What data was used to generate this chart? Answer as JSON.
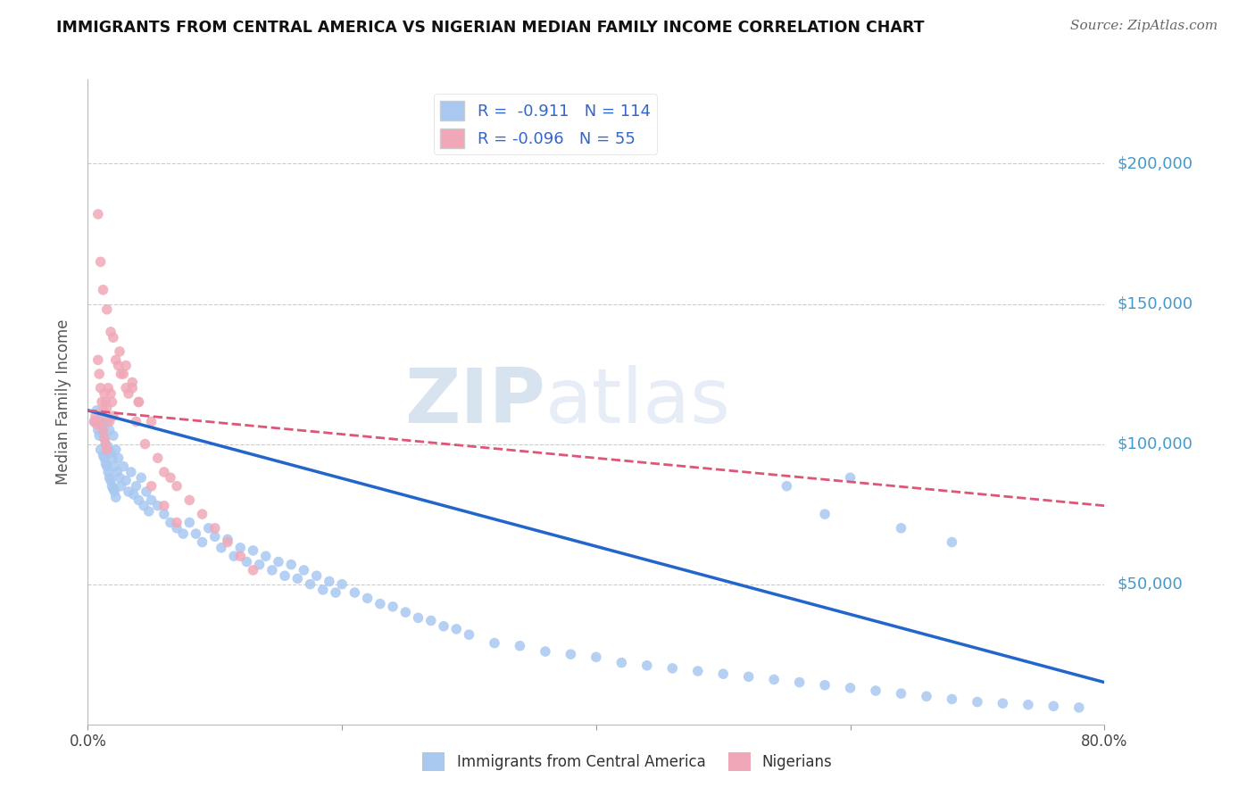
{
  "title": "IMMIGRANTS FROM CENTRAL AMERICA VS NIGERIAN MEDIAN FAMILY INCOME CORRELATION CHART",
  "source": "Source: ZipAtlas.com",
  "ylabel": "Median Family Income",
  "xlim": [
    0.0,
    0.8
  ],
  "ylim": [
    0,
    230000
  ],
  "yticks": [
    0,
    50000,
    100000,
    150000,
    200000
  ],
  "ytick_labels": [
    "",
    "$50,000",
    "$100,000",
    "$150,000",
    "$200,000"
  ],
  "xtick_labels": [
    "0.0%",
    "",
    "",
    "",
    "80.0%"
  ],
  "xticks": [
    0.0,
    0.2,
    0.4,
    0.6,
    0.8
  ],
  "blue_R": "-0.911",
  "blue_N": "114",
  "pink_R": "-0.096",
  "pink_N": "55",
  "blue_color": "#a8c8f0",
  "pink_color": "#f0a8b8",
  "blue_line_color": "#2266cc",
  "pink_line_color": "#dd5577",
  "legend_blue_label": "Immigrants from Central America",
  "legend_pink_label": "Nigerians",
  "watermark_zip": "ZIP",
  "watermark_atlas": "atlas",
  "background_color": "#ffffff",
  "grid_color": "#cccccc",
  "title_color": "#111111",
  "axis_label_color": "#555555",
  "blue_scatter_x": [
    0.005,
    0.007,
    0.008,
    0.009,
    0.01,
    0.01,
    0.011,
    0.012,
    0.012,
    0.013,
    0.013,
    0.014,
    0.014,
    0.015,
    0.015,
    0.016,
    0.016,
    0.017,
    0.017,
    0.018,
    0.018,
    0.019,
    0.019,
    0.02,
    0.02,
    0.021,
    0.021,
    0.022,
    0.022,
    0.023,
    0.024,
    0.025,
    0.026,
    0.028,
    0.03,
    0.032,
    0.034,
    0.036,
    0.038,
    0.04,
    0.042,
    0.044,
    0.046,
    0.048,
    0.05,
    0.055,
    0.06,
    0.065,
    0.07,
    0.075,
    0.08,
    0.085,
    0.09,
    0.095,
    0.1,
    0.105,
    0.11,
    0.115,
    0.12,
    0.125,
    0.13,
    0.135,
    0.14,
    0.145,
    0.15,
    0.155,
    0.16,
    0.165,
    0.17,
    0.175,
    0.18,
    0.185,
    0.19,
    0.195,
    0.2,
    0.21,
    0.22,
    0.23,
    0.24,
    0.25,
    0.26,
    0.27,
    0.28,
    0.29,
    0.3,
    0.32,
    0.34,
    0.36,
    0.38,
    0.4,
    0.42,
    0.44,
    0.46,
    0.48,
    0.5,
    0.52,
    0.54,
    0.56,
    0.58,
    0.6,
    0.62,
    0.64,
    0.66,
    0.68,
    0.7,
    0.72,
    0.74,
    0.76,
    0.78,
    0.55,
    0.58,
    0.6,
    0.64,
    0.68
  ],
  "blue_scatter_y": [
    108000,
    112000,
    105000,
    103000,
    110000,
    98000,
    107000,
    104000,
    96000,
    102000,
    95000,
    100000,
    93000,
    108000,
    92000,
    99000,
    90000,
    105000,
    88000,
    97000,
    87000,
    95000,
    85000,
    103000,
    84000,
    92000,
    83000,
    98000,
    81000,
    90000,
    95000,
    88000,
    85000,
    92000,
    87000,
    83000,
    90000,
    82000,
    85000,
    80000,
    88000,
    78000,
    83000,
    76000,
    80000,
    78000,
    75000,
    72000,
    70000,
    68000,
    72000,
    68000,
    65000,
    70000,
    67000,
    63000,
    66000,
    60000,
    63000,
    58000,
    62000,
    57000,
    60000,
    55000,
    58000,
    53000,
    57000,
    52000,
    55000,
    50000,
    53000,
    48000,
    51000,
    47000,
    50000,
    47000,
    45000,
    43000,
    42000,
    40000,
    38000,
    37000,
    35000,
    34000,
    32000,
    29000,
    28000,
    26000,
    25000,
    24000,
    22000,
    21000,
    20000,
    19000,
    18000,
    17000,
    16000,
    15000,
    14000,
    13000,
    12000,
    11000,
    10000,
    9000,
    8000,
    7500,
    7000,
    6500,
    6000,
    85000,
    75000,
    88000,
    70000,
    65000
  ],
  "pink_scatter_x": [
    0.005,
    0.006,
    0.007,
    0.008,
    0.009,
    0.01,
    0.01,
    0.011,
    0.012,
    0.012,
    0.013,
    0.013,
    0.014,
    0.014,
    0.015,
    0.015,
    0.016,
    0.017,
    0.018,
    0.019,
    0.02,
    0.022,
    0.024,
    0.026,
    0.028,
    0.03,
    0.032,
    0.035,
    0.038,
    0.04,
    0.045,
    0.05,
    0.055,
    0.06,
    0.065,
    0.07,
    0.08,
    0.09,
    0.1,
    0.11,
    0.12,
    0.13,
    0.05,
    0.06,
    0.07,
    0.008,
    0.01,
    0.012,
    0.015,
    0.018,
    0.02,
    0.025,
    0.03,
    0.035,
    0.04
  ],
  "pink_scatter_y": [
    108000,
    110000,
    107000,
    130000,
    125000,
    120000,
    108000,
    115000,
    112000,
    105000,
    118000,
    102000,
    115000,
    100000,
    113000,
    98000,
    120000,
    108000,
    118000,
    115000,
    110000,
    130000,
    128000,
    125000,
    125000,
    120000,
    118000,
    120000,
    108000,
    115000,
    100000,
    108000,
    95000,
    90000,
    88000,
    85000,
    80000,
    75000,
    70000,
    65000,
    60000,
    55000,
    85000,
    78000,
    72000,
    182000,
    165000,
    155000,
    148000,
    140000,
    138000,
    133000,
    128000,
    122000,
    115000
  ],
  "blue_line_x0": 0.0,
  "blue_line_y0": 112000,
  "blue_line_x1": 0.8,
  "blue_line_y1": 15000,
  "pink_line_x0": 0.0,
  "pink_line_y0": 112000,
  "pink_line_x1": 0.8,
  "pink_line_y1": 78000
}
